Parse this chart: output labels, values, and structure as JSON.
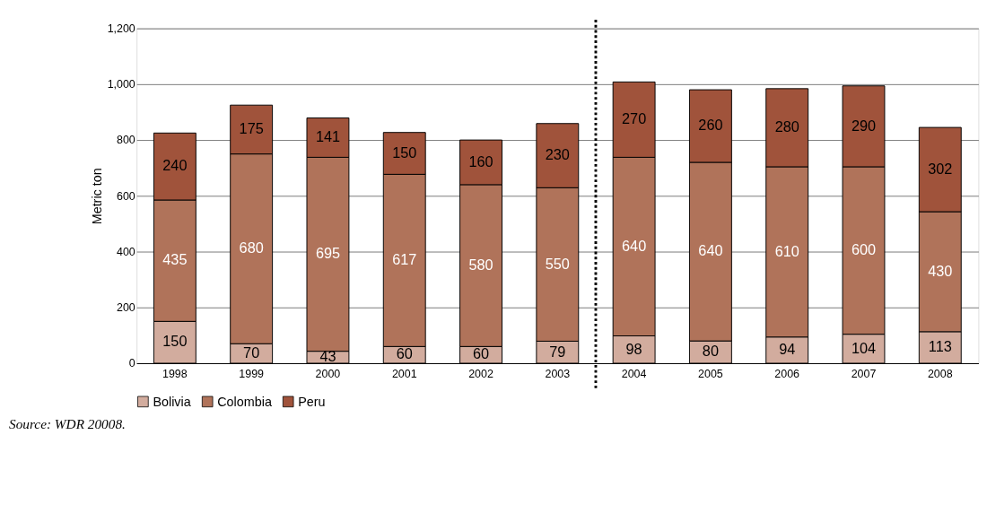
{
  "chart_data": {
    "type": "bar",
    "stacked": true,
    "ylabel": "Metric ton",
    "categories": [
      "1998",
      "1999",
      "2000",
      "2001",
      "2002",
      "2003",
      "2004",
      "2005",
      "2006",
      "2007",
      "2008"
    ],
    "series": [
      {
        "name": "Bolivia",
        "color": "#d2ac9e",
        "values": [
          150,
          70,
          43,
          60,
          60,
          79,
          98,
          80,
          94,
          104,
          113
        ]
      },
      {
        "name": "Colombia",
        "color": "#b0735a",
        "values": [
          435,
          680,
          695,
          617,
          580,
          550,
          640,
          640,
          610,
          600,
          430
        ]
      },
      {
        "name": "Peru",
        "color": "#a0533b",
        "values": [
          240,
          175,
          141,
          150,
          160,
          230,
          270,
          260,
          280,
          290,
          302
        ]
      }
    ],
    "ylim": [
      0,
      1200
    ],
    "yticks": [
      0,
      200,
      400,
      600,
      800,
      {
        "value": 1000,
        "label": "1,000"
      },
      {
        "value": 1200,
        "label": "1,200"
      }
    ],
    "grid": "y",
    "legend": "bottom",
    "data_labels": true,
    "ref_lines": [
      {
        "axis": "x",
        "value": "2004",
        "color": "#000000",
        "line_style": "dotted"
      }
    ],
    "annotations": [
      "Source: WDR 20008."
    ]
  }
}
